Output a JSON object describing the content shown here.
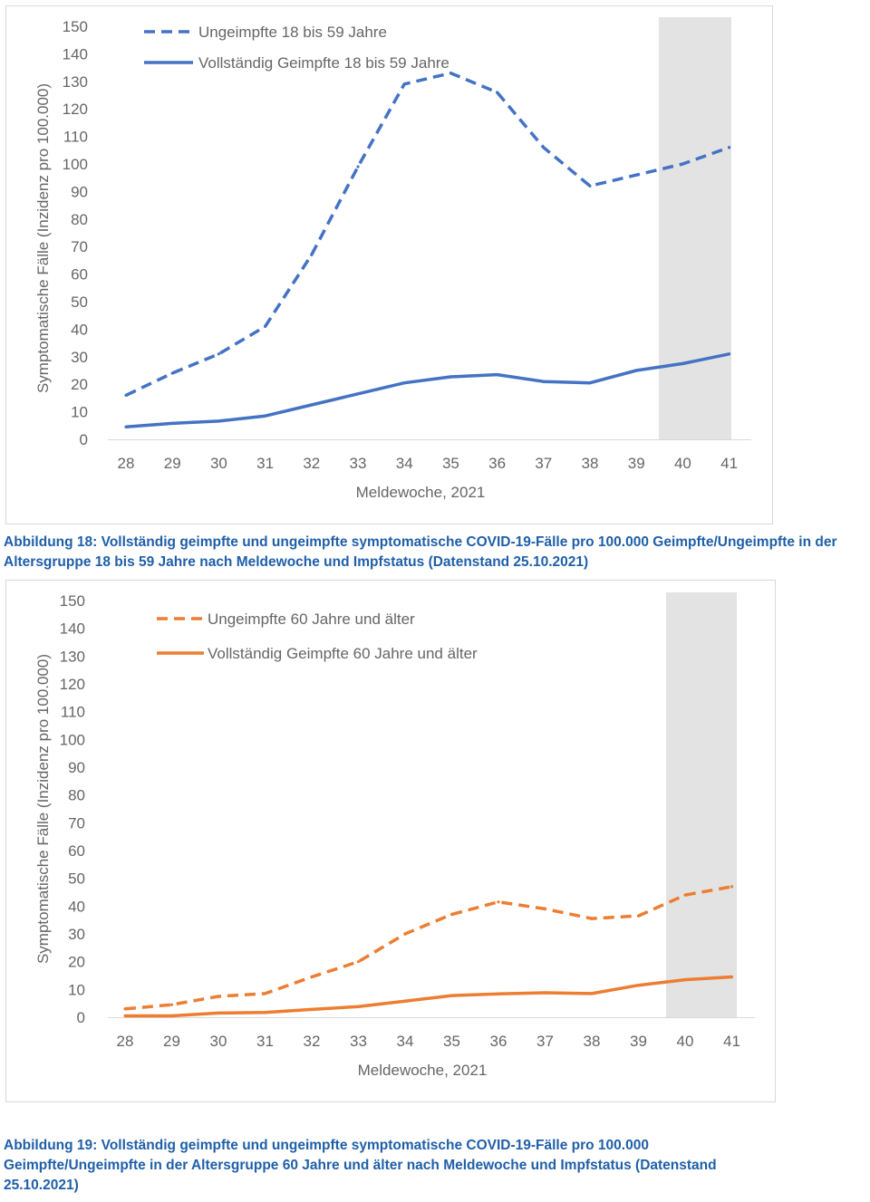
{
  "chart_data": [
    {
      "type": "line",
      "title": "",
      "xlabel": "Meldewoche, 2021",
      "ylabel": "Symptomatische Fälle (Inzidenz pro 100.000)",
      "x": [
        "28",
        "29",
        "30",
        "31",
        "32",
        "33",
        "34",
        "35",
        "36",
        "37",
        "38",
        "39",
        "40",
        "41"
      ],
      "ylim": [
        0,
        150
      ],
      "yticks": [
        0,
        10,
        20,
        30,
        40,
        50,
        60,
        70,
        80,
        90,
        100,
        110,
        120,
        130,
        140,
        150
      ],
      "grid": false,
      "legend_position": "top-left",
      "highlight_x_range": [
        "40",
        "41"
      ],
      "highlight_color": "#e3e3e3",
      "series": [
        {
          "name": "Ungeimpfte 18 bis 59 Jahre",
          "style": "dashed",
          "color": "#4472c4",
          "values": [
            16,
            24,
            31,
            41,
            67,
            99,
            129,
            133,
            126,
            106,
            92,
            96,
            100,
            106
          ]
        },
        {
          "name": "Vollständig Geimpfte 18 bis 59 Jahre",
          "style": "solid",
          "color": "#4472c4",
          "values": [
            4.5,
            5.8,
            6.6,
            8.5,
            12.5,
            16.5,
            20.5,
            22.7,
            23.5,
            21.0,
            20.5,
            25.0,
            27.5,
            31.0
          ]
        }
      ]
    },
    {
      "type": "line",
      "title": "",
      "xlabel": "Meldewoche, 2021",
      "ylabel": "Symptomatische Fälle (Inzidenz pro 100.000)",
      "x": [
        "28",
        "29",
        "30",
        "31",
        "32",
        "33",
        "34",
        "35",
        "36",
        "37",
        "38",
        "39",
        "40",
        "41"
      ],
      "ylim": [
        0,
        150
      ],
      "yticks": [
        0,
        10,
        20,
        30,
        40,
        50,
        60,
        70,
        80,
        90,
        100,
        110,
        120,
        130,
        140,
        150
      ],
      "grid": false,
      "legend_position": "top-left",
      "highlight_x_range": [
        "40",
        "41"
      ],
      "highlight_color": "#e3e3e3",
      "series": [
        {
          "name": "Ungeimpfte 60 Jahre und älter",
          "style": "dashed",
          "color": "#ed7d31",
          "values": [
            3,
            4.5,
            7.5,
            8.5,
            14.5,
            20,
            30,
            37,
            41.5,
            39,
            35.5,
            36.5,
            44,
            47
          ]
        },
        {
          "name": "Vollständig Geimpfte 60 Jahre und älter",
          "style": "solid",
          "color": "#ed7d31",
          "values": [
            0.5,
            0.5,
            1.5,
            1.7,
            2.8,
            3.8,
            5.8,
            7.8,
            8.4,
            8.8,
            8.5,
            11.5,
            13.5,
            14.5
          ]
        }
      ]
    }
  ],
  "captions": {
    "figure18": "Abbildung 18: Vollständig geimpfte und ungeimpfte symptomatische COVID-19-Fälle pro 100.000 Geimpfte/Ungeimpfte in der Altersgruppe 18 bis 59 Jahre nach Meldewoche und Impfstatus (Datenstand 25.10.2021)",
    "figure19": "Abbildung 19: Vollständig geimpfte und ungeimpfte symptomatische COVID-19-Fälle pro 100.000 Geimpfte/Ungeimpfte in der Altersgruppe 60 Jahre und älter nach Meldewoche und Impfstatus (Datenstand 25.10.2021)"
  }
}
